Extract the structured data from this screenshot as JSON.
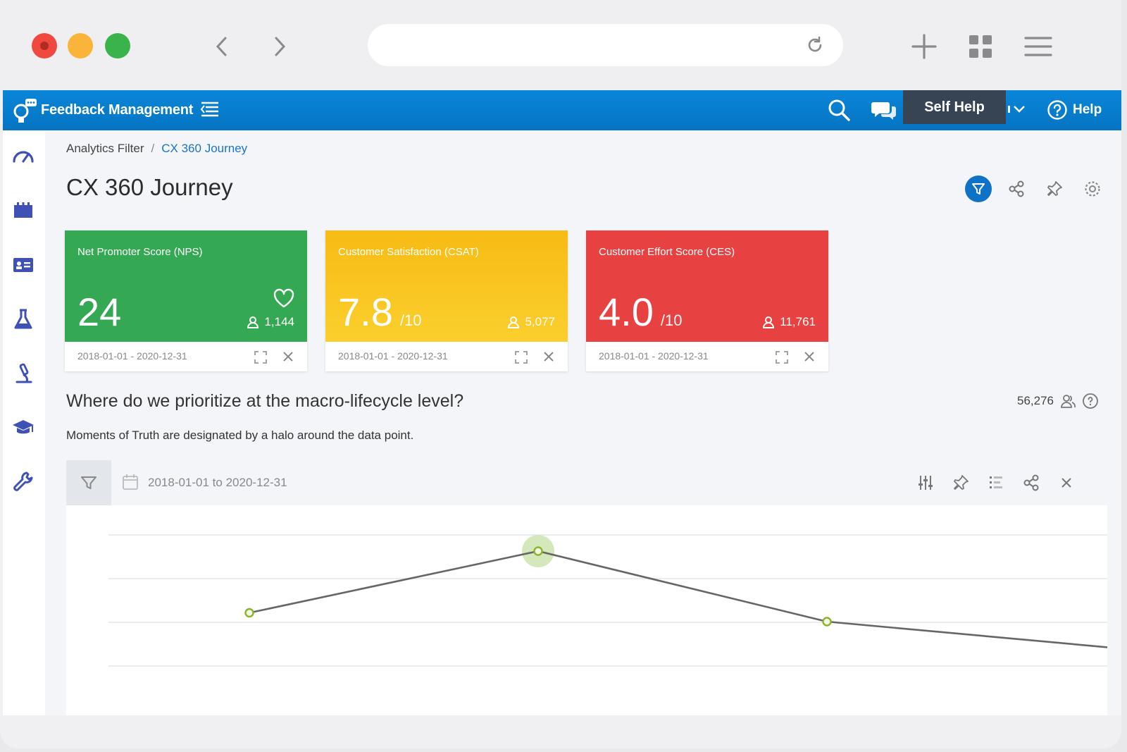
{
  "browser": {
    "url": ""
  },
  "app": {
    "title": "Feedback Management",
    "self_help": "Self Help",
    "help": "Help"
  },
  "breadcrumb": {
    "parent": "Analytics Filter",
    "separator": "/",
    "current": "CX 360 Journey"
  },
  "page": {
    "title": "CX 360 Journey"
  },
  "cards": [
    {
      "name": "Net Promoter Score (NPS)",
      "value": "24",
      "denom": "",
      "count": "1,144",
      "range": "2018-01-01 - 2020-12-31",
      "color": "#34a853"
    },
    {
      "name": "Customer Satisfaction (CSAT)",
      "value": "7.8",
      "denom": "/10",
      "count": "5,077",
      "range": "2018-01-01 - 2020-12-31",
      "color": "#f7bd16"
    },
    {
      "name": "Customer Effort Score (CES)",
      "value": "4.0",
      "denom": "/10",
      "count": "11,761",
      "range": "2018-01-01 - 2020-12-31",
      "color": "#e84142"
    }
  ],
  "section": {
    "title": "Where do we prioritize at the macro-lifecycle level?",
    "subtitle": "Moments of Truth are designated by a halo around the data point.",
    "responses": "56,276"
  },
  "panel": {
    "date_range": "2018-01-01 to 2020-12-31"
  },
  "chart_data": {
    "type": "line",
    "x": [
      1,
      2,
      3,
      4
    ],
    "series": [
      {
        "values": [
          0.55,
          0.9,
          0.5,
          0.35
        ],
        "moment_of_truth": [
          false,
          true,
          false,
          false
        ]
      }
    ],
    "grid": true,
    "legend": "none",
    "line_color": "#666666",
    "point_color": "#8ab528",
    "halo_color": "#cde4b0"
  },
  "colors": {
    "header": "#0a7fd2",
    "accent": "#0e73c7",
    "sidebar_icon": "#3f51b5"
  }
}
